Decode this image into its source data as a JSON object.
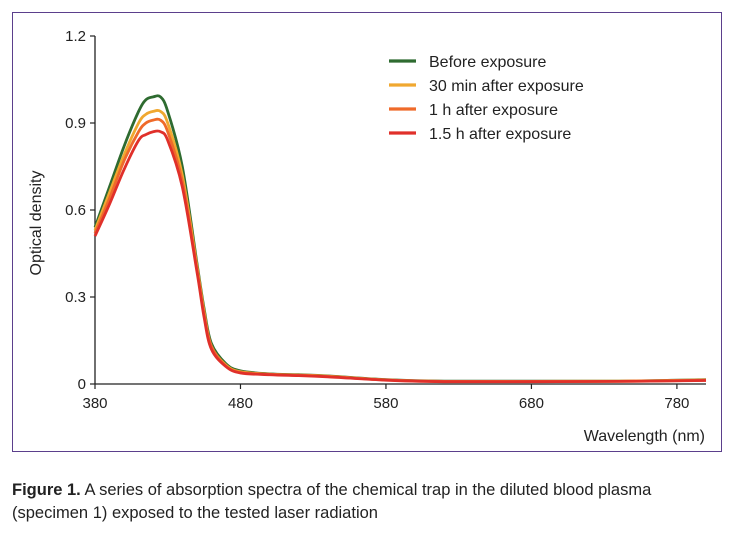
{
  "chart_data": {
    "type": "line",
    "title": "",
    "xlabel": "Wavelength (nm)",
    "ylabel": "Optical density",
    "xlim": [
      380,
      800
    ],
    "ylim": [
      0,
      1.2
    ],
    "xticks": [
      380,
      480,
      580,
      680,
      780
    ],
    "yticks": [
      0,
      0.3,
      0.6,
      0.9,
      1.2
    ],
    "ytick_labels": [
      "0",
      "0.3",
      "0.6",
      "0.9",
      "1.2"
    ],
    "legend_position": "top-right",
    "grid": false,
    "series": [
      {
        "name": "Before exposure",
        "color": "#2e6b30",
        "x": [
          380,
          390,
          400,
          410,
          415,
          420,
          425,
          430,
          440,
          450,
          455,
          460,
          470,
          480,
          500,
          520,
          540,
          580,
          620,
          680,
          740,
          800
        ],
        "y": [
          0.54,
          0.68,
          0.82,
          0.94,
          0.98,
          0.99,
          0.99,
          0.94,
          0.75,
          0.42,
          0.26,
          0.14,
          0.07,
          0.045,
          0.035,
          0.032,
          0.028,
          0.015,
          0.01,
          0.01,
          0.01,
          0.015
        ]
      },
      {
        "name": "30 min after exposure",
        "color": "#f0a830",
        "x": [
          380,
          390,
          400,
          410,
          415,
          420,
          425,
          430,
          440,
          450,
          455,
          460,
          470,
          480,
          500,
          520,
          540,
          580,
          620,
          680,
          740,
          800
        ],
        "y": [
          0.53,
          0.66,
          0.79,
          0.9,
          0.93,
          0.94,
          0.94,
          0.9,
          0.72,
          0.41,
          0.25,
          0.13,
          0.065,
          0.042,
          0.034,
          0.031,
          0.027,
          0.014,
          0.009,
          0.009,
          0.01,
          0.014
        ]
      },
      {
        "name": "1 h after exposure",
        "color": "#ef6a2a",
        "x": [
          380,
          390,
          400,
          410,
          415,
          420,
          425,
          430,
          440,
          450,
          455,
          460,
          470,
          480,
          500,
          520,
          540,
          580,
          620,
          680,
          740,
          800
        ],
        "y": [
          0.52,
          0.64,
          0.77,
          0.87,
          0.9,
          0.91,
          0.91,
          0.87,
          0.7,
          0.4,
          0.24,
          0.13,
          0.062,
          0.04,
          0.033,
          0.03,
          0.026,
          0.014,
          0.009,
          0.009,
          0.009,
          0.013
        ]
      },
      {
        "name": "1.5 h after exposure",
        "color": "#e0302a",
        "x": [
          380,
          390,
          400,
          410,
          415,
          420,
          425,
          430,
          440,
          450,
          455,
          460,
          470,
          480,
          500,
          520,
          540,
          580,
          620,
          680,
          740,
          800
        ],
        "y": [
          0.51,
          0.62,
          0.74,
          0.84,
          0.86,
          0.87,
          0.87,
          0.84,
          0.68,
          0.39,
          0.23,
          0.12,
          0.06,
          0.038,
          0.032,
          0.029,
          0.025,
          0.013,
          0.008,
          0.008,
          0.009,
          0.012
        ]
      }
    ]
  },
  "caption": {
    "label": "Figure 1.",
    "text": " A series of absorption spectra of the chemical trap in the diluted blood plasma (specimen 1) exposed to the tested laser radiation"
  }
}
